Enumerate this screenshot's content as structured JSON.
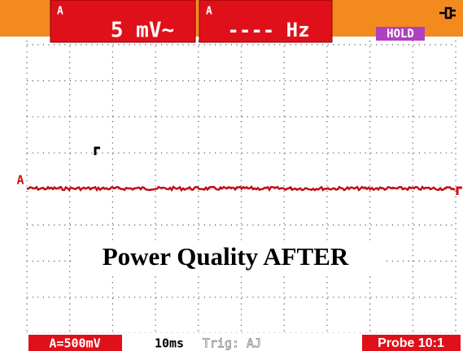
{
  "header": {
    "reading1": {
      "channel": "A",
      "value": "5 mV~"
    },
    "reading2": {
      "channel": "A",
      "value": "---- Hz"
    },
    "status": "HOLD"
  },
  "screen": {
    "trace_marker": "A",
    "overlay_title": "Power Quality AFTER"
  },
  "footer": {
    "range": "A=500mV",
    "timebase": "10ms",
    "trigger": "Trig: AJ",
    "probe": "Probe 10:1"
  }
}
